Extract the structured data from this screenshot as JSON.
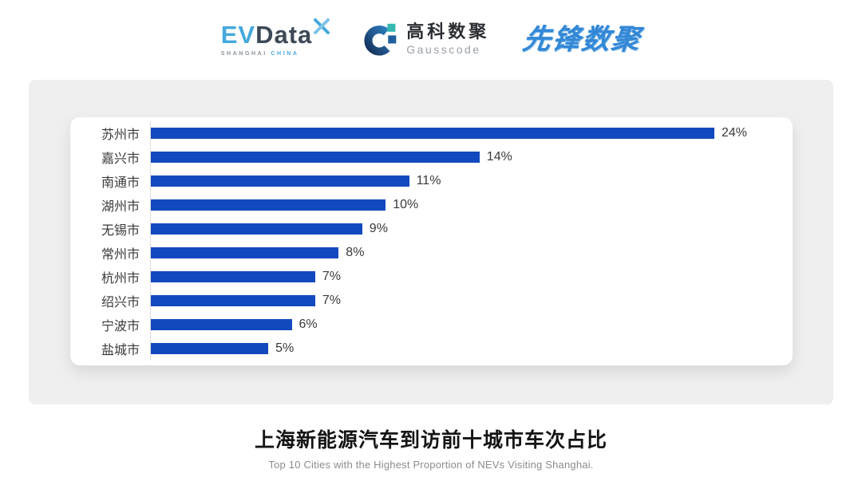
{
  "header": {
    "evdata_logo": {
      "ev": "EV",
      "data": "Data",
      "tagline_left": "SHANGHAI",
      "tagline_right": "CHINA"
    },
    "gausscode_logo": {
      "name_cn": "高科数聚",
      "name_en": "Gausscode"
    },
    "xianfeng_logo": {
      "text": "先锋数聚"
    }
  },
  "chart_data": {
    "type": "bar",
    "orientation": "horizontal",
    "title": "上海新能源汽车到访前十城市车次占比",
    "subtitle": "Top 10 Cities with the Highest Proportion of  NEVs Visiting Shanghai.",
    "categories": [
      "苏州市",
      "嘉兴市",
      "南通市",
      "湖州市",
      "无锡市",
      "常州市",
      "杭州市",
      "绍兴市",
      "宁波市",
      "盐城市"
    ],
    "values": [
      24,
      14,
      11,
      10,
      9,
      8,
      7,
      7,
      6,
      5
    ],
    "value_labels": [
      "24%",
      "14%",
      "11%",
      "10%",
      "9%",
      "8%",
      "7%",
      "7%",
      "6%",
      "5%"
    ],
    "unit": "%",
    "xlim": [
      0,
      24
    ],
    "grid": false,
    "legend": false,
    "bar_color": "#1349be",
    "axis_line_color": "#dcdcdc"
  },
  "colors": {
    "card_background": "#efefef",
    "panel_background": "#ffffff",
    "bar_blue": "#1349be",
    "evdata_blue": "#45a9dd",
    "evdata_dark": "#3d4956",
    "gausscode_teal": "#35b8b2",
    "gausscode_navy": "#1c3f6e",
    "xianfeng_blue": "#3387d6",
    "label_text": "#3a3a3a",
    "subtitle_gray": "#8c8c8c"
  }
}
